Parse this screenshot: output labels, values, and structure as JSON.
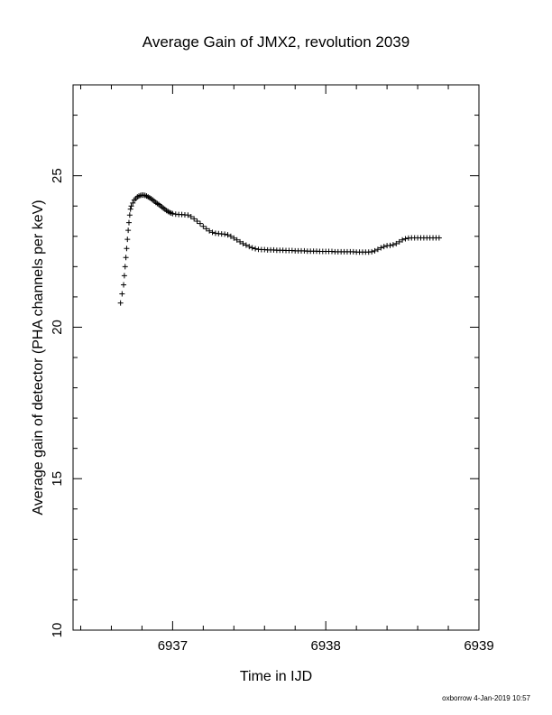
{
  "chart_data": {
    "type": "scatter",
    "title": "Average Gain of JMX2, revolution 2039",
    "xlabel": "Time in IJD",
    "ylabel": "Average gain of detector (PHA channels per keV)",
    "xlim": [
      6936.35,
      6939
    ],
    "ylim": [
      10,
      28
    ],
    "xticks": [
      6937,
      6938,
      6939
    ],
    "xtick_labels": [
      "6937",
      "6938",
      "6939"
    ],
    "yticks": [
      10,
      15,
      20,
      25
    ],
    "ytick_labels": [
      "10",
      "15",
      "20",
      "25"
    ],
    "x_minor_step": 0.2,
    "y_minor_step": 1,
    "grid": false,
    "marker": "plus",
    "marker_color": "#000000",
    "series": [
      {
        "points": [
          [
            6936.66,
            20.8
          ],
          [
            6936.67,
            21.1
          ],
          [
            6936.68,
            21.4
          ],
          [
            6936.685,
            21.7
          ],
          [
            6936.69,
            22.0
          ],
          [
            6936.695,
            22.3
          ],
          [
            6936.7,
            22.6
          ],
          [
            6936.705,
            22.9
          ],
          [
            6936.71,
            23.2
          ],
          [
            6936.715,
            23.45
          ],
          [
            6936.72,
            23.7
          ],
          [
            6936.725,
            23.9
          ],
          [
            6936.73,
            24.0
          ],
          [
            6936.74,
            24.1
          ],
          [
            6936.75,
            24.2
          ],
          [
            6936.76,
            24.25
          ],
          [
            6936.77,
            24.3
          ],
          [
            6936.78,
            24.33
          ],
          [
            6936.79,
            24.35
          ],
          [
            6936.8,
            24.36
          ],
          [
            6936.81,
            24.36
          ],
          [
            6936.82,
            24.35
          ],
          [
            6936.83,
            24.33
          ],
          [
            6936.84,
            24.3
          ],
          [
            6936.85,
            24.27
          ],
          [
            6936.86,
            24.24
          ],
          [
            6936.87,
            24.2
          ],
          [
            6936.88,
            24.16
          ],
          [
            6936.89,
            24.12
          ],
          [
            6936.9,
            24.08
          ],
          [
            6936.91,
            24.05
          ],
          [
            6936.92,
            24.01
          ],
          [
            6936.93,
            23.97
          ],
          [
            6936.94,
            23.93
          ],
          [
            6936.95,
            23.89
          ],
          [
            6936.96,
            23.85
          ],
          [
            6936.97,
            23.82
          ],
          [
            6936.98,
            23.79
          ],
          [
            6936.99,
            23.77
          ],
          [
            6937.0,
            23.75
          ],
          [
            6937.02,
            23.73
          ],
          [
            6937.04,
            23.72
          ],
          [
            6937.06,
            23.72
          ],
          [
            6937.08,
            23.71
          ],
          [
            6937.1,
            23.7
          ],
          [
            6937.12,
            23.65
          ],
          [
            6937.14,
            23.58
          ],
          [
            6937.16,
            23.5
          ],
          [
            6937.18,
            23.42
          ],
          [
            6937.2,
            23.33
          ],
          [
            6937.22,
            23.25
          ],
          [
            6937.24,
            23.18
          ],
          [
            6937.26,
            23.13
          ],
          [
            6937.28,
            23.1
          ],
          [
            6937.3,
            23.09
          ],
          [
            6937.32,
            23.08
          ],
          [
            6937.34,
            23.07
          ],
          [
            6937.36,
            23.05
          ],
          [
            6937.38,
            23.0
          ],
          [
            6937.4,
            22.94
          ],
          [
            6937.42,
            22.88
          ],
          [
            6937.44,
            22.82
          ],
          [
            6937.46,
            22.76
          ],
          [
            6937.48,
            22.71
          ],
          [
            6937.5,
            22.66
          ],
          [
            6937.52,
            22.62
          ],
          [
            6937.54,
            22.59
          ],
          [
            6937.56,
            22.57
          ],
          [
            6937.58,
            22.56
          ],
          [
            6937.6,
            22.56
          ],
          [
            6937.62,
            22.55
          ],
          [
            6937.64,
            22.55
          ],
          [
            6937.66,
            22.55
          ],
          [
            6937.68,
            22.54
          ],
          [
            6937.7,
            22.54
          ],
          [
            6937.72,
            22.54
          ],
          [
            6937.74,
            22.53
          ],
          [
            6937.76,
            22.53
          ],
          [
            6937.78,
            22.53
          ],
          [
            6937.8,
            22.52
          ],
          [
            6937.82,
            22.52
          ],
          [
            6937.84,
            22.52
          ],
          [
            6937.86,
            22.52
          ],
          [
            6937.88,
            22.51
          ],
          [
            6937.9,
            22.51
          ],
          [
            6937.92,
            22.51
          ],
          [
            6937.94,
            22.51
          ],
          [
            6937.96,
            22.5
          ],
          [
            6937.98,
            22.5
          ],
          [
            6938.0,
            22.5
          ],
          [
            6938.02,
            22.5
          ],
          [
            6938.04,
            22.5
          ],
          [
            6938.06,
            22.49
          ],
          [
            6938.08,
            22.49
          ],
          [
            6938.1,
            22.49
          ],
          [
            6938.12,
            22.49
          ],
          [
            6938.14,
            22.49
          ],
          [
            6938.16,
            22.49
          ],
          [
            6938.18,
            22.49
          ],
          [
            6938.2,
            22.48
          ],
          [
            6938.22,
            22.48
          ],
          [
            6938.24,
            22.48
          ],
          [
            6938.26,
            22.48
          ],
          [
            6938.28,
            22.48
          ],
          [
            6938.3,
            22.49
          ],
          [
            6938.32,
            22.52
          ],
          [
            6938.34,
            22.57
          ],
          [
            6938.36,
            22.62
          ],
          [
            6938.38,
            22.66
          ],
          [
            6938.4,
            22.69
          ],
          [
            6938.42,
            22.7
          ],
          [
            6938.44,
            22.72
          ],
          [
            6938.46,
            22.76
          ],
          [
            6938.48,
            22.82
          ],
          [
            6938.5,
            22.88
          ],
          [
            6938.52,
            22.92
          ],
          [
            6938.54,
            22.94
          ],
          [
            6938.56,
            22.95
          ],
          [
            6938.58,
            22.95
          ],
          [
            6938.6,
            22.95
          ],
          [
            6938.62,
            22.95
          ],
          [
            6938.64,
            22.95
          ],
          [
            6938.66,
            22.95
          ],
          [
            6938.68,
            22.95
          ],
          [
            6938.7,
            22.95
          ],
          [
            6938.72,
            22.95
          ],
          [
            6938.74,
            22.95
          ]
        ]
      }
    ]
  },
  "footer": {
    "user_timestamp": "oxborrow  4-Jan-2019 10:57"
  }
}
